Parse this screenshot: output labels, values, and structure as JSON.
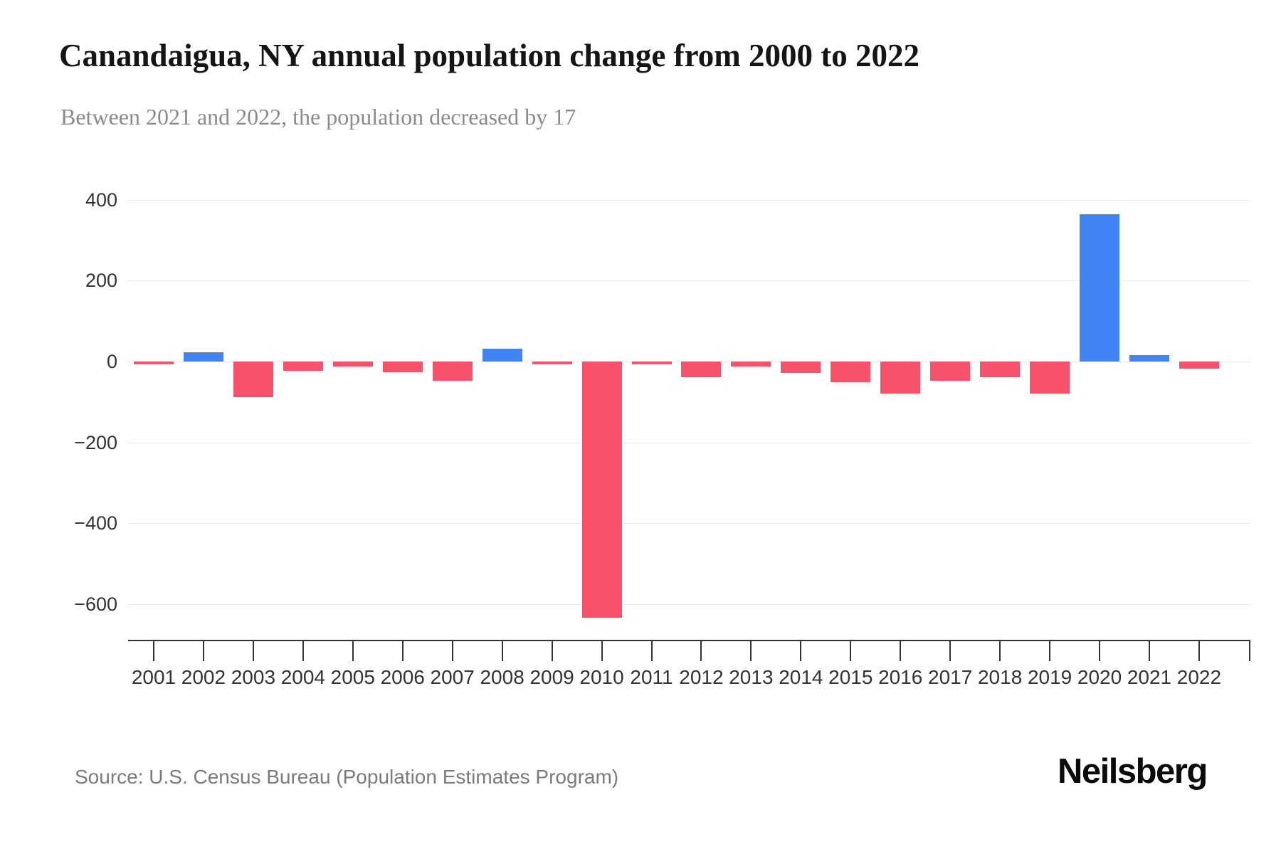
{
  "header": {
    "title": "Canandaigua, NY annual population change from 2000 to 2022",
    "subtitle": "Between 2021 and 2022, the population decreased by 17"
  },
  "chart_data": {
    "type": "bar",
    "title": "Canandaigua, NY annual population change from 2000 to 2022",
    "subtitle": "Between 2021 and 2022, the population decreased by 17",
    "categories": [
      "2001",
      "2002",
      "2003",
      "2004",
      "2005",
      "2006",
      "2007",
      "2008",
      "2009",
      "2010",
      "2011",
      "2012",
      "2013",
      "2014",
      "2015",
      "2016",
      "2017",
      "2018",
      "2019",
      "2020",
      "2021",
      "2022"
    ],
    "values": [
      -7,
      22,
      -88,
      -23,
      -12,
      -26,
      -47,
      31,
      -7,
      -633,
      -7,
      -39,
      -12,
      -29,
      -51,
      -79,
      -48,
      -39,
      -80,
      365,
      16,
      -17
    ],
    "xlabel": "",
    "ylabel": "",
    "ylim": [
      -690,
      460
    ],
    "ytick_values": [
      400,
      200,
      0,
      -200,
      -400,
      -600
    ],
    "ytick_labels": [
      "400",
      "200",
      "0",
      "−200",
      "−400",
      "−600"
    ],
    "grid": "horizontal",
    "legend": "none",
    "colors": {
      "positive": "#4185F4",
      "negative": "#F8516C"
    }
  },
  "footer": {
    "source": "Source: U.S. Census Bureau (Population Estimates Program)",
    "logo": "Neilsberg"
  }
}
